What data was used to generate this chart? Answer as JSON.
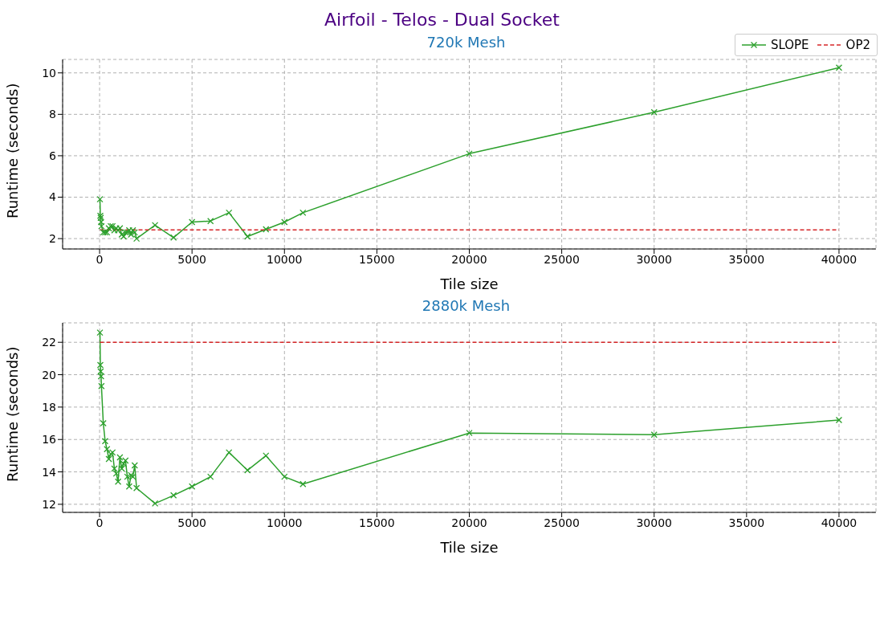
{
  "chart_data": [
    {
      "type": "line",
      "title": "Airfoil - Telos - Dual Socket",
      "subtitle": "720k Mesh",
      "xlabel": "Tile size",
      "ylabel": "Runtime (seconds)",
      "xlim": [
        -2000,
        42000
      ],
      "xticks": [
        0,
        5000,
        10000,
        15000,
        20000,
        25000,
        30000,
        35000,
        40000
      ],
      "ylim": [
        1.5,
        10.65
      ],
      "yticks": [
        2,
        4,
        6,
        8,
        10
      ],
      "grid": true,
      "legend": "top right",
      "x": [
        20,
        40,
        60,
        80,
        100,
        200,
        300,
        400,
        500,
        600,
        700,
        800,
        900,
        1000,
        1100,
        1200,
        1300,
        1400,
        1500,
        1600,
        1700,
        1800,
        1900,
        2000,
        3000,
        4000,
        5000,
        6000,
        7000,
        8000,
        9000,
        10000,
        11000,
        20000,
        30000,
        40000
      ],
      "series": [
        {
          "name": "SLOPE",
          "color": "#2ca02c",
          "marker": "cross",
          "line_style": "solid",
          "values": [
            3.9,
            3.1,
            3.0,
            2.8,
            2.6,
            2.3,
            2.3,
            2.3,
            2.5,
            2.6,
            2.6,
            2.4,
            2.5,
            2.4,
            2.5,
            2.2,
            2.1,
            2.3,
            2.3,
            2.4,
            2.2,
            2.4,
            2.3,
            2.0,
            2.65,
            2.05,
            2.8,
            2.85,
            3.25,
            2.1,
            2.45,
            2.8,
            3.25,
            6.1,
            8.1,
            10.25
          ]
        },
        {
          "name": "OP2",
          "color": "#d62728",
          "marker": "none",
          "line_style": "dashed",
          "values": [
            2.42,
            2.42,
            2.42,
            2.42,
            2.42,
            2.42,
            2.42,
            null,
            2.42,
            2.42,
            2.42,
            2.42,
            2.42,
            2.42,
            2.42,
            2.42,
            2.42,
            2.42,
            2.42,
            2.42,
            2.42,
            2.42,
            2.42,
            2.42,
            2.42,
            2.42,
            2.42,
            2.42,
            2.42,
            2.42,
            2.42,
            2.42,
            2.42,
            2.42,
            2.42,
            2.42
          ]
        }
      ]
    },
    {
      "type": "line",
      "subtitle": "2880k Mesh",
      "xlabel": "Tile size",
      "ylabel": "Runtime (seconds)",
      "xlim": [
        -2000,
        42000
      ],
      "xticks": [
        0,
        5000,
        10000,
        15000,
        20000,
        25000,
        30000,
        35000,
        40000
      ],
      "ylim": [
        11.5,
        23.2
      ],
      "yticks": [
        12,
        14,
        16,
        18,
        20,
        22
      ],
      "grid": true,
      "x": [
        20,
        40,
        60,
        80,
        100,
        200,
        300,
        400,
        500,
        600,
        700,
        800,
        900,
        1000,
        1100,
        1200,
        1300,
        1400,
        1500,
        1600,
        1700,
        1800,
        1900,
        2000,
        3000,
        4000,
        5000,
        6000,
        7000,
        8000,
        9000,
        10000,
        11000,
        20000,
        30000,
        40000
      ],
      "series": [
        {
          "color": "#2ca02c",
          "marker": "cross",
          "line_style": "solid",
          "values": [
            22.6,
            20.6,
            20.2,
            19.9,
            19.3,
            17.0,
            15.9,
            15.4,
            14.8,
            15.1,
            15.2,
            14.2,
            13.9,
            13.4,
            14.9,
            14.2,
            14.5,
            14.7,
            13.7,
            13.1,
            13.8,
            13.7,
            14.4,
            13.0,
            12.05,
            12.55,
            13.1,
            13.7,
            15.2,
            14.1,
            15.0,
            13.7,
            13.25,
            16.4,
            16.3,
            17.2
          ]
        },
        {
          "color": "#d62728",
          "marker": "none",
          "line_style": "dashed",
          "values": [
            22.0,
            22.0,
            22.0,
            22.0,
            22.0,
            22.0,
            22.0,
            22.0,
            22.0,
            22.0,
            22.0,
            22.0,
            22.0,
            22.0,
            22.0,
            22.0,
            22.0,
            22.0,
            22.0,
            22.0,
            22.0,
            22.0,
            22.0,
            22.0,
            22.0,
            22.0,
            22.0,
            22.0,
            22.0,
            22.0,
            22.0,
            22.0,
            22.0,
            22.0,
            22.0,
            22.0
          ]
        }
      ]
    }
  ]
}
